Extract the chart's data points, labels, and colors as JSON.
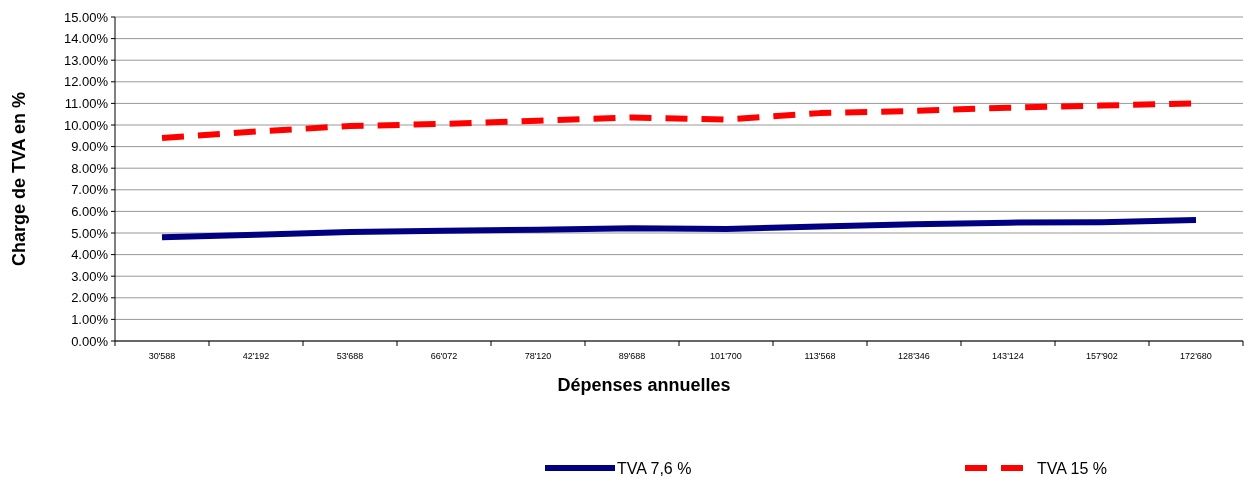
{
  "chart_data": {
    "type": "line",
    "xlabel": "Dépenses annuelles",
    "ylabel": "Charge de TVA en %",
    "categories": [
      "30'588",
      "42'192",
      "53'688",
      "66'072",
      "78'120",
      "89'688",
      "101'700",
      "113'568",
      "128'346",
      "143'124",
      "157'902",
      "172'680"
    ],
    "series": [
      {
        "name": "TVA 7,6 %",
        "color": "#000080",
        "line_style": "solid",
        "values": [
          4.8,
          4.92,
          5.05,
          5.1,
          5.15,
          5.22,
          5.18,
          5.3,
          5.4,
          5.48,
          5.5,
          5.6
        ]
      },
      {
        "name": "TVA 15 %",
        "color": "#ff0000",
        "line_style": "dashed",
        "values": [
          9.4,
          9.7,
          9.95,
          10.05,
          10.2,
          10.35,
          10.25,
          10.55,
          10.65,
          10.8,
          10.9,
          11.0
        ]
      }
    ],
    "ylim": [
      0,
      15
    ],
    "yticks": [
      {
        "value": 0,
        "label": "0.00%"
      },
      {
        "value": 1,
        "label": "1.00%"
      },
      {
        "value": 2,
        "label": "2.00%"
      },
      {
        "value": 3,
        "label": "3.00%"
      },
      {
        "value": 4,
        "label": "4.00%"
      },
      {
        "value": 5,
        "label": "5.00%"
      },
      {
        "value": 6,
        "label": "6.00%"
      },
      {
        "value": 7,
        "label": "7.00%"
      },
      {
        "value": 8,
        "label": "8.00%"
      },
      {
        "value": 9,
        "label": "9.00%"
      },
      {
        "value": 10,
        "label": "10.00%"
      },
      {
        "value": 11,
        "label": "11.00%"
      },
      {
        "value": 12,
        "label": "12.00%"
      },
      {
        "value": 13,
        "label": "13.00%"
      },
      {
        "value": 14,
        "label": "14.00%"
      },
      {
        "value": 15,
        "label": "15.00%"
      }
    ],
    "grid": "y",
    "legend": "bottom",
    "marker": "none"
  }
}
